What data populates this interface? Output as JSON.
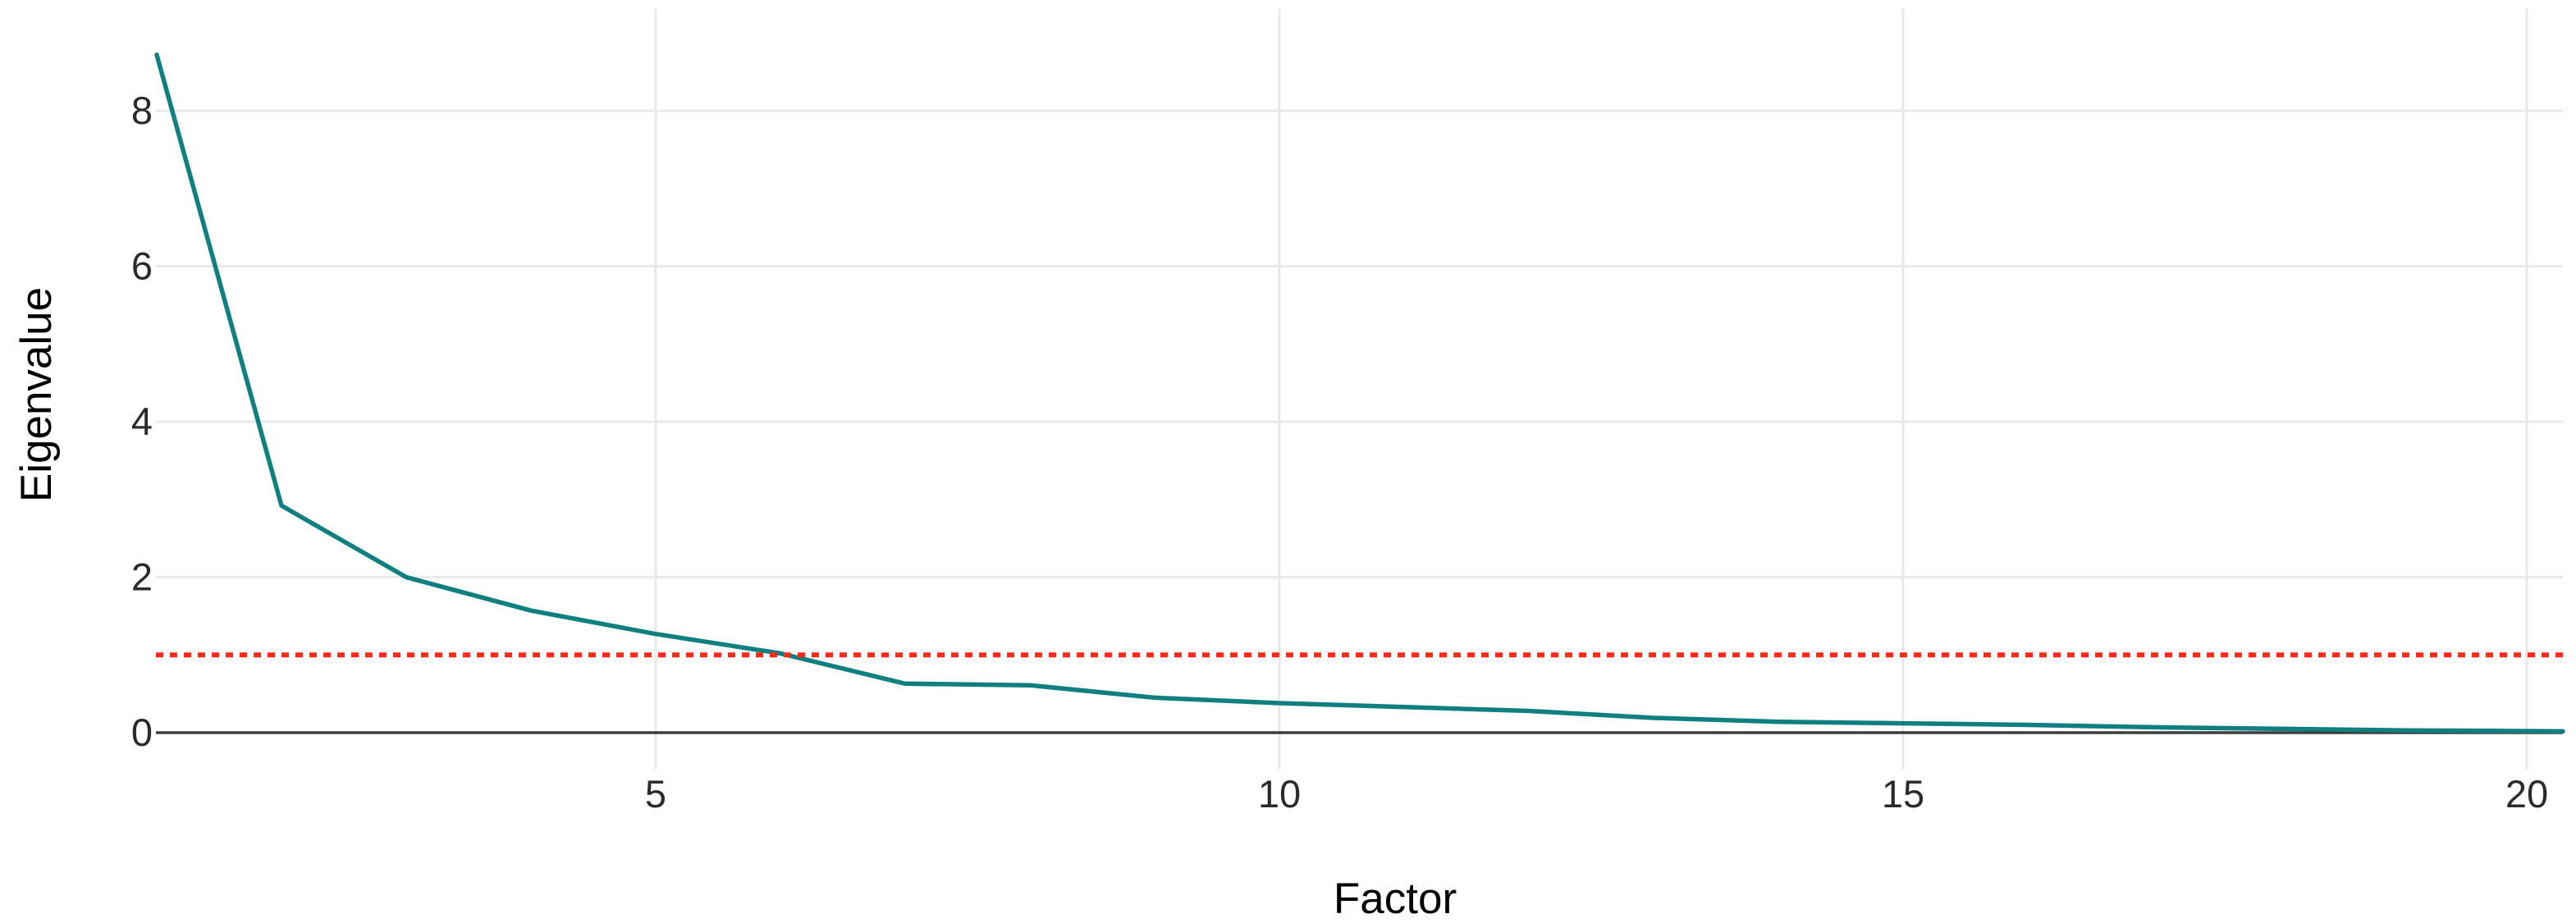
{
  "chart_data": {
    "type": "line",
    "title": "",
    "xlabel": "Factor",
    "ylabel": "Eigenvalue",
    "x": [
      1,
      2,
      3,
      4,
      5,
      6,
      7,
      8,
      9,
      10,
      11,
      12,
      13,
      14,
      15,
      16,
      17,
      18,
      19,
      20
    ],
    "series": [
      {
        "name": "eigenvalues",
        "values": [
          8.72,
          2.92,
          2.0,
          1.57,
          1.27,
          1.02,
          0.63,
          0.61,
          0.45,
          0.38,
          0.33,
          0.28,
          0.19,
          0.14,
          0.12,
          0.1,
          0.07,
          0.05,
          0.03,
          0.02
        ]
      }
    ],
    "reference_line": {
      "y": 1,
      "style": "dashed"
    },
    "baseline": {
      "y": 0
    },
    "x_ticks": [
      5,
      10,
      15,
      20
    ],
    "x_tick_labels": [
      "5",
      "10",
      "15",
      "20"
    ],
    "y_ticks": [
      0,
      2,
      4,
      6,
      8
    ],
    "y_tick_labels": [
      "0",
      "2",
      "4",
      "6",
      "8"
    ],
    "xlim": [
      1,
      20.3
    ],
    "ylim": [
      0,
      9.2
    ],
    "grid": true,
    "legend": false,
    "line_extends_to_panel_edge": true,
    "colors": {
      "line": "#0f7f80",
      "reference_line": "#fb2a18",
      "baseline": "#3d3d3d",
      "gridline": "#e9e9e9",
      "tick_text": "#2b2b2b",
      "title_text": "#000000",
      "background": "#ffffff"
    }
  }
}
